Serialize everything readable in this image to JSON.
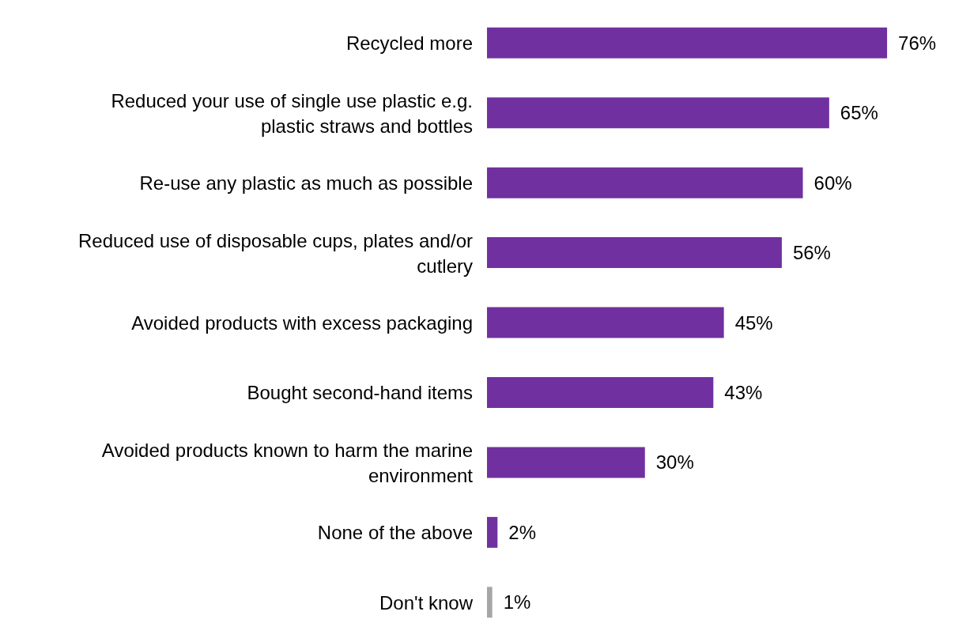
{
  "chart_data": {
    "type": "bar",
    "orientation": "horizontal",
    "categories": [
      "Recycled more",
      "Reduced your use of single use plastic e.g. plastic straws and bottles",
      "Re-use any plastic as much as possible",
      "Reduced use of disposable cups, plates and/or cutlery",
      "Avoided products with excess packaging",
      "Bought second-hand items",
      "Avoided products known to harm the marine environment",
      "None of the above",
      "Don't know"
    ],
    "values": [
      76,
      65,
      60,
      56,
      45,
      43,
      30,
      2,
      1
    ],
    "value_labels": [
      "76%",
      "65%",
      "60%",
      "56%",
      "45%",
      "43%",
      "30%",
      "2%",
      "1%"
    ],
    "colors": [
      "#7030a0",
      "#7030a0",
      "#7030a0",
      "#7030a0",
      "#7030a0",
      "#7030a0",
      "#7030a0",
      "#7030a0",
      "#a6a6a6"
    ],
    "legend": false,
    "grid": false
  }
}
